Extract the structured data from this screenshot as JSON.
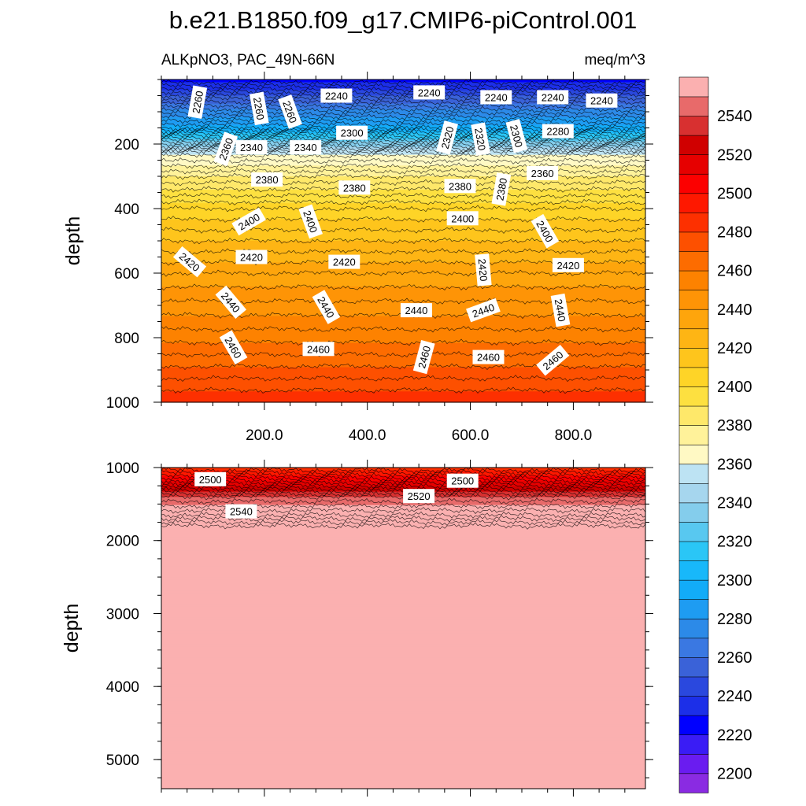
{
  "chart_data": [
    {
      "type": "contour",
      "panel": "upper",
      "title": "b.e21.B1850.f09_g17.CMIP6-piControl.001",
      "left_subtitle": "ALKpNO3, PAC_49N-66N",
      "right_subtitle": "meq/m^3",
      "xlabel": "",
      "ylabel": "depth",
      "xlim": [
        0,
        940
      ],
      "ylim": [
        1000,
        0
      ],
      "x_ticks": [
        "200.0",
        "400.0",
        "600.0",
        "800.0"
      ],
      "y_ticks": [
        "200",
        "400",
        "600",
        "800",
        "1000"
      ],
      "profile": [
        {
          "depth": 0,
          "value": 2215
        },
        {
          "depth": 60,
          "value": 2245
        },
        {
          "depth": 150,
          "value": 2285
        },
        {
          "depth": 230,
          "value": 2348
        },
        {
          "depth": 300,
          "value": 2370
        },
        {
          "depth": 400,
          "value": 2395
        },
        {
          "depth": 600,
          "value": 2425
        },
        {
          "depth": 800,
          "value": 2448
        },
        {
          "depth": 1000,
          "value": 2475
        }
      ],
      "contour_labels": [
        {
          "x": 70,
          "depth": 70,
          "value": "2260",
          "angle": -80
        },
        {
          "x": 190,
          "depth": 90,
          "value": "2260",
          "angle": 80
        },
        {
          "x": 250,
          "depth": 100,
          "value": "2260",
          "angle": 70
        },
        {
          "x": 340,
          "depth": 50,
          "value": "2240",
          "angle": 0
        },
        {
          "x": 520,
          "depth": 40,
          "value": "2240",
          "angle": 0
        },
        {
          "x": 650,
          "depth": 55,
          "value": "2240",
          "angle": 0
        },
        {
          "x": 760,
          "depth": 55,
          "value": "2240",
          "angle": 0
        },
        {
          "x": 855,
          "depth": 65,
          "value": "2240",
          "angle": 0
        },
        {
          "x": 125,
          "depth": 215,
          "value": "2360",
          "angle": -70
        },
        {
          "x": 175,
          "depth": 210,
          "value": "2340",
          "angle": 0
        },
        {
          "x": 280,
          "depth": 210,
          "value": "2340",
          "angle": 0
        },
        {
          "x": 370,
          "depth": 165,
          "value": "2300",
          "angle": 0
        },
        {
          "x": 555,
          "depth": 180,
          "value": "2320",
          "angle": -75
        },
        {
          "x": 620,
          "depth": 185,
          "value": "2320",
          "angle": 80
        },
        {
          "x": 690,
          "depth": 175,
          "value": "2300",
          "angle": 75
        },
        {
          "x": 770,
          "depth": 160,
          "value": "2280",
          "angle": 0
        },
        {
          "x": 205,
          "depth": 310,
          "value": "2380",
          "angle": 0
        },
        {
          "x": 375,
          "depth": 335,
          "value": "2380",
          "angle": 0
        },
        {
          "x": 580,
          "depth": 330,
          "value": "2380",
          "angle": 0
        },
        {
          "x": 660,
          "depth": 340,
          "value": "2380",
          "angle": -80
        },
        {
          "x": 740,
          "depth": 290,
          "value": "2360",
          "angle": 0
        },
        {
          "x": 170,
          "depth": 440,
          "value": "2400",
          "angle": -30
        },
        {
          "x": 290,
          "depth": 440,
          "value": "2400",
          "angle": 70
        },
        {
          "x": 585,
          "depth": 430,
          "value": "2400",
          "angle": 0
        },
        {
          "x": 745,
          "depth": 470,
          "value": "2400",
          "angle": 60
        },
        {
          "x": 55,
          "depth": 565,
          "value": "2420",
          "angle": 40
        },
        {
          "x": 175,
          "depth": 550,
          "value": "2420",
          "angle": 0
        },
        {
          "x": 355,
          "depth": 565,
          "value": "2420",
          "angle": 0
        },
        {
          "x": 625,
          "depth": 590,
          "value": "2420",
          "angle": 85
        },
        {
          "x": 790,
          "depth": 575,
          "value": "2420",
          "angle": 0
        },
        {
          "x": 135,
          "depth": 690,
          "value": "2440",
          "angle": 50
        },
        {
          "x": 320,
          "depth": 705,
          "value": "2440",
          "angle": 60
        },
        {
          "x": 495,
          "depth": 715,
          "value": "2440",
          "angle": 0
        },
        {
          "x": 625,
          "depth": 715,
          "value": "2440",
          "angle": -20
        },
        {
          "x": 775,
          "depth": 715,
          "value": "2440",
          "angle": 80
        },
        {
          "x": 140,
          "depth": 830,
          "value": "2460",
          "angle": 60
        },
        {
          "x": 305,
          "depth": 835,
          "value": "2460",
          "angle": 0
        },
        {
          "x": 510,
          "depth": 860,
          "value": "2460",
          "angle": -75
        },
        {
          "x": 635,
          "depth": 860,
          "value": "2460",
          "angle": 0
        },
        {
          "x": 760,
          "depth": 870,
          "value": "2460",
          "angle": -40
        }
      ]
    },
    {
      "type": "contour",
      "panel": "lower",
      "xlabel": "",
      "ylabel": "depth",
      "xlim": [
        0,
        940
      ],
      "ylim": [
        5400,
        1000
      ],
      "y_ticks": [
        "1000",
        "2000",
        "3000",
        "4000",
        "5000"
      ],
      "profile": [
        {
          "depth": 1000,
          "value": 2475
        },
        {
          "depth": 1400,
          "value": 2530
        },
        {
          "depth": 1650,
          "value": 2550
        },
        {
          "depth": 1800,
          "value": 2565
        },
        {
          "depth": 5400,
          "value": 2570
        }
      ],
      "contour_labels": [
        {
          "x": 95,
          "depth": 1160,
          "value": "2500",
          "angle": 0
        },
        {
          "x": 585,
          "depth": 1180,
          "value": "2500",
          "angle": 0
        },
        {
          "x": 500,
          "depth": 1390,
          "value": "2520",
          "angle": 0
        },
        {
          "x": 155,
          "depth": 1600,
          "value": "2540",
          "angle": 0
        }
      ]
    }
  ],
  "colorbar": {
    "levels_min": 2190,
    "levels_step": 10,
    "colors": [
      "#8a2be2",
      "#6a1cf0",
      "#3a1cf5",
      "#0000ff",
      "#1c2fe8",
      "#2a48de",
      "#3a62d8",
      "#3a78e2",
      "#2c8ae8",
      "#1e9cf2",
      "#12acf8",
      "#18b8fa",
      "#2ac6f6",
      "#58c8f0",
      "#84cdec",
      "#a6d6ee",
      "#bde3f3",
      "#fff9c4",
      "#fff29a",
      "#fee86a",
      "#fde040",
      "#fed427",
      "#fec51c",
      "#feb514",
      "#fea50c",
      "#fe9406",
      "#fd8200",
      "#fd6c00",
      "#fd5000",
      "#fd3000",
      "#fe1800",
      "#fc0000",
      "#e60000",
      "#d00000",
      "#d83030",
      "#e86a6a",
      "#fbb0b0"
    ],
    "tick_labels": [
      "2200",
      "2220",
      "2240",
      "2260",
      "2280",
      "2300",
      "2320",
      "2340",
      "2360",
      "2380",
      "2400",
      "2420",
      "2440",
      "2460",
      "2480",
      "2500",
      "2520",
      "2540"
    ]
  }
}
